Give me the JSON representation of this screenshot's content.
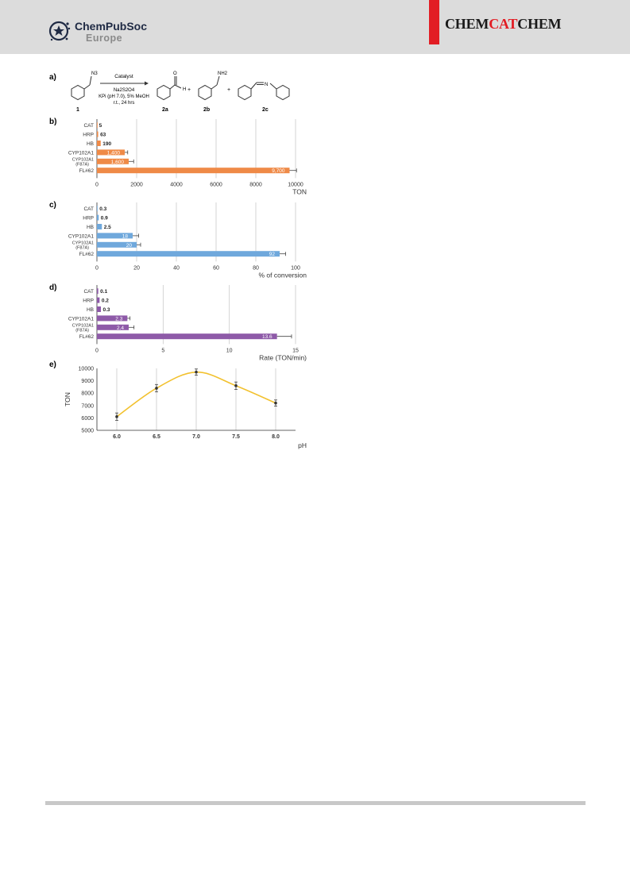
{
  "header": {
    "publisher_line1": "ChemPubSoc",
    "publisher_line2": "Europe",
    "journal_part1": "CHEM",
    "journal_part2": "CAT",
    "journal_part3": "CHEM",
    "colors": {
      "band": "#dcdcdc",
      "accent": "#e21d24"
    }
  },
  "scheme": {
    "panel_label": "a)",
    "substituent_n3": "N3",
    "arrow_above": "Catalyst",
    "arrow_below_1": "Na2S2O4",
    "arrow_below_2": "KPi (pH 7.0), 5% MeOH",
    "arrow_below_3": "r.t., 24 hrs",
    "substituent_o": "O",
    "substituent_h": "H",
    "plus_1": "+",
    "substituent_nh2": "NH2",
    "plus_2": "+",
    "substituent_n": "N",
    "label_1": "1",
    "label_2a": "2a",
    "label_2b": "2b",
    "label_2c": "2c"
  },
  "chart_data": [
    {
      "panel_label": "b)",
      "type": "bar",
      "orientation": "horizontal",
      "color": "#ef8a47",
      "categories": [
        "CAT",
        "HRP",
        "HB",
        "CYP102A1",
        "CYP102A1 (F87A)",
        "FL#62"
      ],
      "category_lines": [
        [
          "CAT"
        ],
        [
          "HRP"
        ],
        [
          "HB"
        ],
        [
          "CYP102A1"
        ],
        [
          "CYP102A1",
          "(F87A)"
        ],
        [
          "FL#62"
        ]
      ],
      "values": [
        5,
        63,
        190,
        1400,
        1600,
        9700
      ],
      "errors": [
        0,
        0,
        0,
        150,
        250,
        350
      ],
      "value_labels": [
        "5",
        "63",
        "190",
        "1,400",
        "1,600",
        "9,700"
      ],
      "xlim": [
        0,
        10000
      ],
      "ticks": [
        0,
        2000,
        4000,
        6000,
        8000,
        10000
      ],
      "tick_labels": [
        "0",
        "2000",
        "4000",
        "6000",
        "8000",
        "10000"
      ],
      "xlabel": "TON",
      "grid": true
    },
    {
      "panel_label": "c)",
      "type": "bar",
      "orientation": "horizontal",
      "color": "#6fa8dc",
      "categories": [
        "CAT",
        "HRP",
        "HB",
        "CYP102A1",
        "CYP102A1 (F87A)",
        "FL#62"
      ],
      "category_lines": [
        [
          "CAT"
        ],
        [
          "HRP"
        ],
        [
          "HB"
        ],
        [
          "CYP102A1"
        ],
        [
          "CYP102A1",
          "(F87A)"
        ],
        [
          "FL#62"
        ]
      ],
      "values": [
        0.3,
        0.9,
        2.5,
        18,
        20,
        92
      ],
      "errors": [
        0,
        0,
        0,
        3,
        2,
        3
      ],
      "value_labels": [
        "0.3",
        "0.9",
        "2.5",
        "18",
        "20",
        "92"
      ],
      "xlim": [
        0,
        100
      ],
      "ticks": [
        0,
        20,
        40,
        60,
        80,
        100
      ],
      "tick_labels": [
        "0",
        "20",
        "40",
        "60",
        "80",
        "100"
      ],
      "xlabel": "% of conversion",
      "grid": true
    },
    {
      "panel_label": "d)",
      "type": "bar",
      "orientation": "horizontal",
      "color": "#8e5aa8",
      "categories": [
        "CAT",
        "HRP",
        "HB",
        "CYP102A1",
        "CYP102A1 (F87A)",
        "FL#62"
      ],
      "category_lines": [
        [
          "CAT"
        ],
        [
          "HRP"
        ],
        [
          "HB"
        ],
        [
          "CYP102A1"
        ],
        [
          "CYP102A1",
          "(F87A)"
        ],
        [
          "FL#62"
        ]
      ],
      "values": [
        0.1,
        0.2,
        0.3,
        2.3,
        2.4,
        13.6
      ],
      "errors": [
        0,
        0,
        0,
        0.2,
        0.4,
        1.1
      ],
      "value_labels": [
        "0.1",
        "0.2",
        "0.3",
        "2.3",
        "2.4",
        "13.6"
      ],
      "xlim": [
        0,
        15
      ],
      "ticks": [
        0,
        5,
        10,
        15
      ],
      "tick_labels": [
        "0",
        "5",
        "10",
        "15"
      ],
      "xlabel": "Rate (TON/min)",
      "grid": true
    },
    {
      "panel_label": "e)",
      "type": "line",
      "line_color": "#f2c12e",
      "x": [
        6.0,
        6.5,
        7.0,
        7.5,
        8.0
      ],
      "y": [
        6100,
        8400,
        9700,
        8600,
        7200
      ],
      "errors": [
        300,
        300,
        250,
        300,
        250
      ],
      "xlim": [
        5.75,
        8.25
      ],
      "ylim": [
        5000,
        10000
      ],
      "xticks": [
        6.0,
        6.5,
        7.0,
        7.5,
        8.0
      ],
      "xtick_labels": [
        "6.0",
        "6.5",
        "7.0",
        "7.5",
        "8.0"
      ],
      "yticks": [
        5000,
        6000,
        7000,
        8000,
        9000,
        10000
      ],
      "ytick_labels": [
        "5000",
        "6000",
        "7000",
        "8000",
        "9000",
        "10000"
      ],
      "xlabel": "pH",
      "ylabel": "TON",
      "grid": true
    }
  ]
}
